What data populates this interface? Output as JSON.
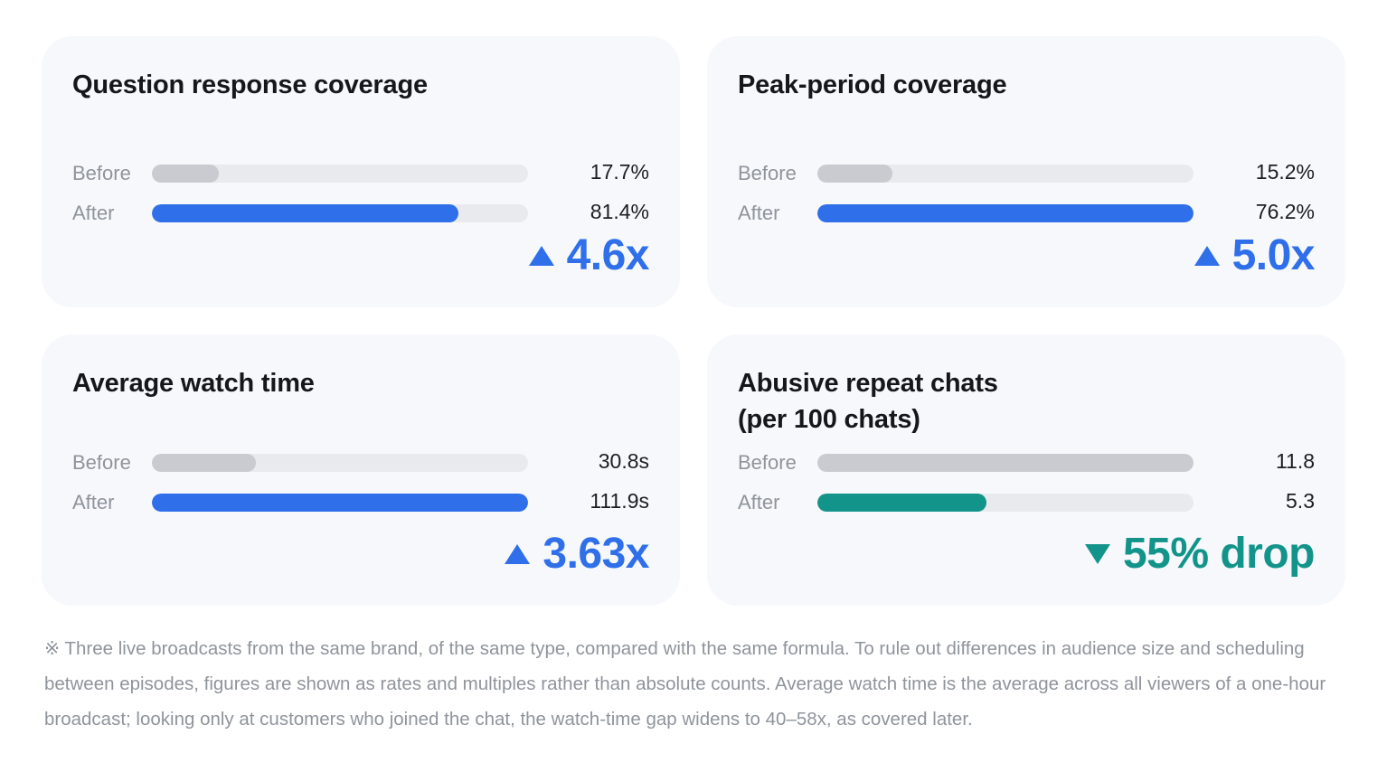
{
  "chart_data": [
    {
      "type": "bar",
      "title": "Question response coverage",
      "categories": [
        "Before",
        "After"
      ],
      "values": [
        17.7,
        81.4
      ],
      "value_labels": [
        "17.7%",
        "81.4%"
      ],
      "unit": "%",
      "xlim": [
        0,
        100
      ],
      "change": "4.6x",
      "change_direction": "up",
      "accent_color": "#2f6fea"
    },
    {
      "type": "bar",
      "title": "Peak-period coverage",
      "categories": [
        "Before",
        "After"
      ],
      "values": [
        15.2,
        76.2
      ],
      "value_labels": [
        "15.2%",
        "76.2%"
      ],
      "unit": "%",
      "xlim": [
        0,
        76.2
      ],
      "change": "5.0x",
      "change_direction": "up",
      "accent_color": "#2f6fea"
    },
    {
      "type": "bar",
      "title": "Average watch time",
      "categories": [
        "Before",
        "After"
      ],
      "values": [
        30.8,
        111.9
      ],
      "value_labels": [
        "30.8s",
        "111.9s"
      ],
      "unit": "s",
      "xlim": [
        0,
        111.9
      ],
      "change": "3.63x",
      "change_direction": "up",
      "accent_color": "#2f6fea"
    },
    {
      "type": "bar",
      "title_lines": [
        "Abusive repeat chats",
        "(per 100 chats)"
      ],
      "categories": [
        "Before",
        "After"
      ],
      "values": [
        11.8,
        5.3
      ],
      "value_labels": [
        "11.8",
        "5.3"
      ],
      "xlim": [
        0,
        11.8
      ],
      "change": "55% drop",
      "change_direction": "down",
      "accent_color": "#13948a"
    }
  ],
  "colors": {
    "before_bar": "#c9cbd0",
    "track": "#e8eaee",
    "increase": "#2f6fea",
    "decrease": "#13948a"
  },
  "footnote": "※ Three live broadcasts from the same brand, of the same type, compared with the same formula. To rule out differences in audience size and scheduling between episodes, figures are shown as rates and multiples rather than absolute counts. Average watch time is the average across all viewers of a one-hour broadcast; looking only at customers who joined the chat, the watch-time gap widens to 40–58x, as covered later."
}
